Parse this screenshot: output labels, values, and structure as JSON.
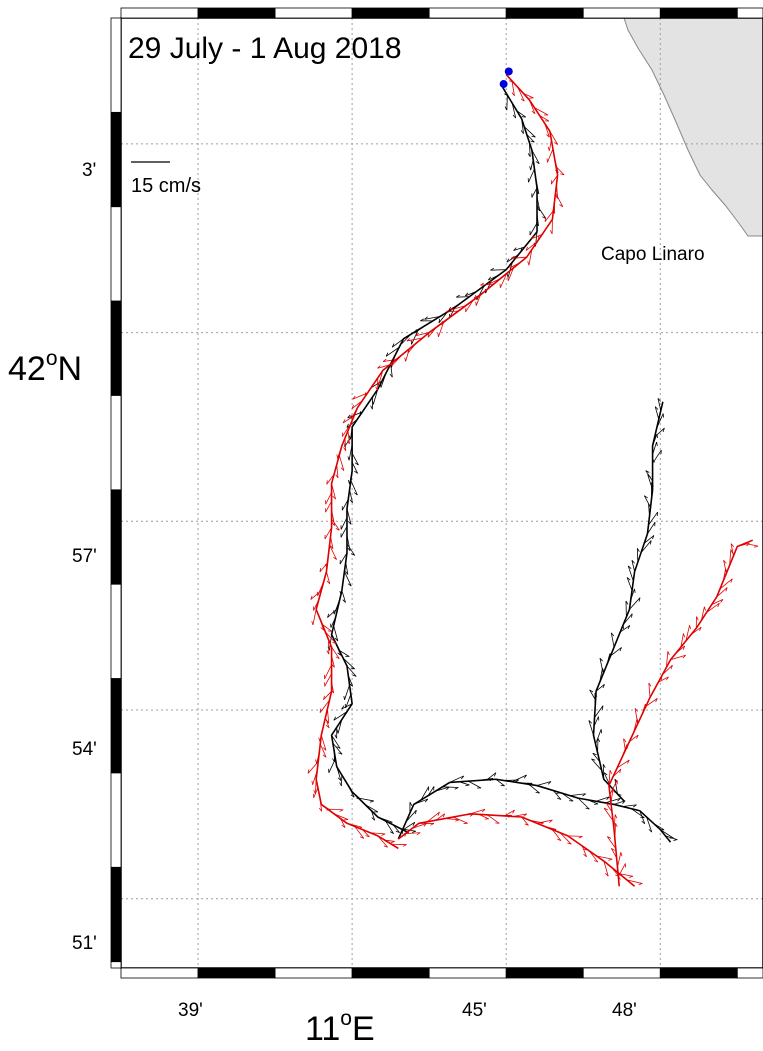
{
  "title": "29 July - 1 Aug 2018",
  "scale_label": "15 cm/s",
  "place_label": "Capo Linaro",
  "y_axis": {
    "main_label_base": "42",
    "main_label_sup": "o",
    "main_label_suffix": "N",
    "ticks": [
      "3'",
      "57'",
      "54'",
      "51'"
    ]
  },
  "x_axis": {
    "main_label_base": "11",
    "main_label_sup": "o",
    "main_label_suffix": "E",
    "ticks": [
      "39'",
      "45'",
      "48'"
    ]
  },
  "colors": {
    "land": "#e3e3e3",
    "grid": "#9e9e9e",
    "track_black": "#000000",
    "track_red": "#e00000",
    "start_marker": "#0000dd"
  },
  "chart_data": {
    "type": "map-trajectories",
    "title": "29 July - 1 Aug 2018",
    "lon_range": [
      37.5,
      50.0
    ],
    "lat_range": [
      49.9,
      65.0
    ],
    "lon_grid_minutes": [
      39,
      42,
      45,
      48
    ],
    "lat_grid_minutes": [
      51,
      54,
      57,
      60,
      63
    ],
    "tracks": [
      {
        "color": "black",
        "points": [
          [
            44.93,
            63.9
          ],
          [
            45.3,
            63.4
          ],
          [
            45.5,
            62.9
          ],
          [
            45.6,
            62.3
          ],
          [
            45.6,
            61.6
          ],
          [
            45.0,
            61.0
          ],
          [
            44.0,
            60.4
          ],
          [
            43.0,
            59.9
          ],
          [
            42.5,
            59.1
          ],
          [
            42.0,
            58.5
          ],
          [
            42.0,
            57.8
          ],
          [
            41.9,
            57.2
          ],
          [
            41.9,
            56.5
          ],
          [
            41.8,
            55.9
          ],
          [
            41.6,
            55.2
          ],
          [
            41.9,
            54.7
          ],
          [
            42.0,
            54.1
          ],
          [
            41.6,
            53.6
          ],
          [
            41.7,
            53.1
          ],
          [
            42.0,
            52.7
          ],
          [
            42.5,
            52.3
          ],
          [
            43.1,
            52.05
          ]
        ]
      },
      {
        "color": "red",
        "points": [
          [
            45.0,
            64.1
          ],
          [
            45.45,
            63.7
          ],
          [
            45.85,
            63.2
          ],
          [
            46.0,
            62.5
          ],
          [
            45.9,
            61.8
          ],
          [
            45.4,
            61.2
          ],
          [
            44.5,
            60.6
          ],
          [
            43.5,
            60.0
          ],
          [
            42.6,
            59.4
          ],
          [
            42.1,
            58.8
          ],
          [
            41.8,
            58.2
          ],
          [
            41.6,
            57.6
          ],
          [
            41.6,
            56.9
          ],
          [
            41.5,
            56.2
          ],
          [
            41.3,
            55.6
          ],
          [
            41.6,
            55.0
          ],
          [
            41.6,
            54.3
          ],
          [
            41.4,
            53.6
          ],
          [
            41.3,
            52.9
          ],
          [
            41.4,
            52.5
          ],
          [
            41.9,
            52.2
          ],
          [
            42.5,
            52.0
          ],
          [
            42.9,
            51.8
          ]
        ]
      },
      {
        "color": "black",
        "points": [
          [
            42.9,
            51.95
          ],
          [
            43.2,
            52.5
          ],
          [
            43.9,
            52.85
          ],
          [
            44.8,
            52.9
          ],
          [
            45.6,
            52.8
          ],
          [
            46.4,
            52.6
          ],
          [
            47.1,
            52.5
          ],
          [
            47.6,
            52.4
          ],
          [
            48.0,
            52.1
          ],
          [
            48.2,
            51.9
          ]
        ]
      },
      {
        "color": "red",
        "points": [
          [
            42.9,
            51.95
          ],
          [
            43.3,
            52.2
          ],
          [
            44.3,
            52.35
          ],
          [
            45.3,
            52.3
          ],
          [
            46.2,
            52.0
          ],
          [
            46.9,
            51.6
          ],
          [
            47.5,
            51.2
          ]
        ]
      },
      {
        "color": "black",
        "points": [
          [
            47.3,
            52.55
          ],
          [
            46.9,
            52.9
          ],
          [
            46.7,
            53.6
          ],
          [
            46.75,
            54.3
          ],
          [
            47.1,
            55.0
          ],
          [
            47.4,
            55.6
          ],
          [
            47.5,
            56.2
          ],
          [
            47.75,
            56.8
          ],
          [
            47.85,
            57.5
          ],
          [
            47.85,
            58.2
          ],
          [
            48.05,
            58.9
          ]
        ]
      },
      {
        "color": "red",
        "points": [
          [
            47.2,
            51.2
          ],
          [
            47.1,
            52.1
          ],
          [
            47.0,
            52.8
          ],
          [
            47.4,
            53.5
          ],
          [
            47.8,
            54.2
          ],
          [
            48.2,
            54.8
          ],
          [
            48.7,
            55.3
          ],
          [
            49.1,
            55.8
          ],
          [
            49.35,
            56.3
          ],
          [
            49.5,
            56.6
          ],
          [
            49.8,
            56.7
          ]
        ]
      }
    ],
    "start_markers": [
      [
        45.05,
        64.15
      ],
      [
        44.95,
        63.95
      ]
    ],
    "scale_vector_cm_s": 15
  }
}
